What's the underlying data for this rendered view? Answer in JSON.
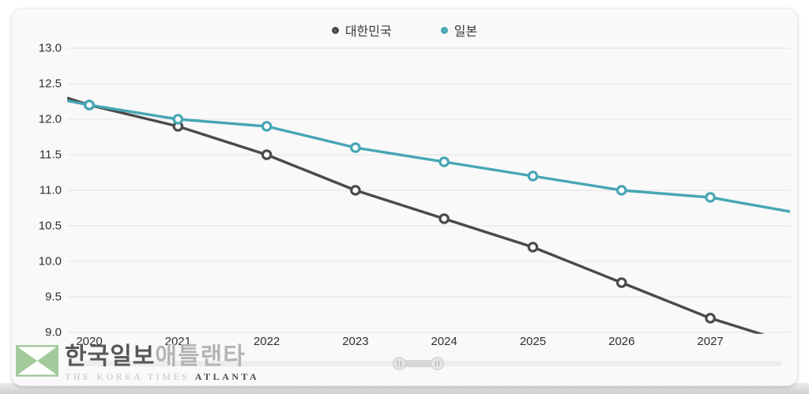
{
  "chart_data": {
    "type": "line",
    "title": "",
    "xlabel": "",
    "ylabel": "",
    "categories": [
      "2020",
      "2021",
      "2022",
      "2023",
      "2024",
      "2025",
      "2026",
      "2027"
    ],
    "series": [
      {
        "name": "대한민국",
        "color": "#4a4a4a",
        "values": [
          12.2,
          11.9,
          11.5,
          11.0,
          10.6,
          10.2,
          9.7,
          9.2
        ],
        "edge_left": 12.3,
        "edge_right": 8.85
      },
      {
        "name": "일본",
        "color": "#46a6b5",
        "values": [
          12.2,
          12.0,
          11.9,
          11.6,
          11.4,
          11.2,
          11.0,
          10.9
        ],
        "edge_left": 12.26,
        "edge_right": 10.7
      }
    ],
    "y_ticks": [
      13.0,
      12.5,
      12.0,
      11.5,
      11.0,
      10.5,
      10.0,
      9.5,
      9.0
    ],
    "ylim": [
      9.0,
      13.0
    ],
    "grid": "horizontal",
    "gridline_color": "#e3e3e3",
    "legend_position": "top-center"
  },
  "logo": {
    "korean_bold": "한국일보",
    "korean_light": "애틀랜타",
    "sub_light": "THE KOREA TIMES ",
    "sub_bold": "ATLANTA",
    "icon_color": "#a3ca9b"
  }
}
